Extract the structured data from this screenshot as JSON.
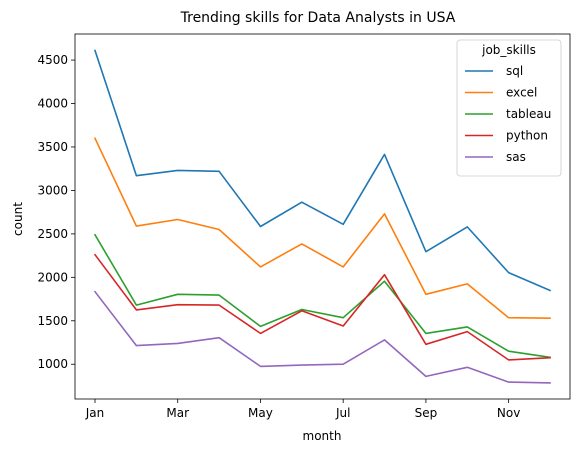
{
  "chart_data": {
    "type": "line",
    "title": "Trending skills for Data Analysts in USA",
    "xlabel": "month",
    "ylabel": "count",
    "x": [
      "Jan",
      "Feb",
      "Mar",
      "Apr",
      "May",
      "Jun",
      "Jul",
      "Aug",
      "Sep",
      "Oct",
      "Nov",
      "Dec"
    ],
    "xticks": [
      "Jan",
      "Mar",
      "May",
      "Jul",
      "Sep",
      "Nov"
    ],
    "yticks": [
      1000,
      1500,
      2000,
      2500,
      3000,
      3500,
      4000,
      4500
    ],
    "ylim": [
      600,
      4800
    ],
    "grid": false,
    "legend": {
      "title": "job_skills",
      "placement": "top-right"
    },
    "series": [
      {
        "name": "sql",
        "color": "#1f77b4",
        "values": [
          4610,
          3170,
          3230,
          3220,
          2585,
          2865,
          2610,
          3415,
          2295,
          2580,
          2055,
          1850
        ]
      },
      {
        "name": "excel",
        "color": "#ff7f0e",
        "values": [
          3600,
          2590,
          2665,
          2550,
          2120,
          2385,
          2120,
          2730,
          1805,
          1925,
          1535,
          1530
        ]
      },
      {
        "name": "tableau",
        "color": "#2ca02c",
        "values": [
          2490,
          1680,
          1805,
          1795,
          1435,
          1630,
          1535,
          1955,
          1355,
          1430,
          1150,
          1080
        ]
      },
      {
        "name": "python",
        "color": "#d62728",
        "values": [
          2260,
          1625,
          1685,
          1680,
          1355,
          1615,
          1440,
          2030,
          1230,
          1375,
          1050,
          1075
        ]
      },
      {
        "name": "sas",
        "color": "#9467bd",
        "values": [
          1835,
          1215,
          1240,
          1305,
          975,
          990,
          1000,
          1280,
          860,
          965,
          795,
          785
        ]
      }
    ]
  }
}
